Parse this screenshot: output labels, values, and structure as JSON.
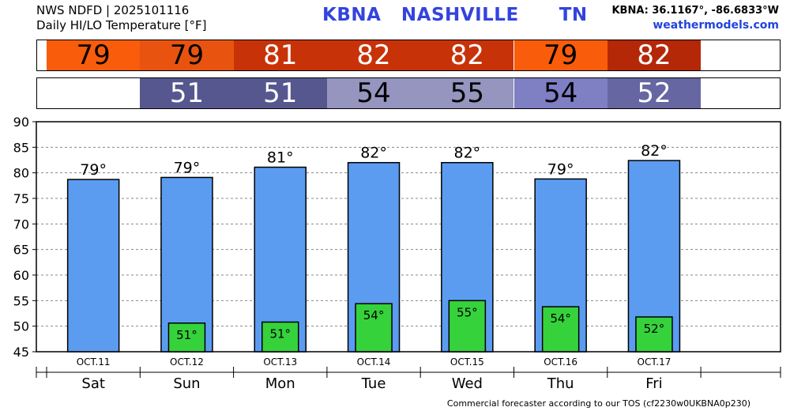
{
  "header": {
    "line1": "NWS NDFD | 2025101116",
    "line2": "Daily HI/LO Temperature [°F]",
    "station": "KBNA   NASHVILLE      TN",
    "coords": "KBNA: 36.1167°, -86.6833°W",
    "site": "weathermodels.com"
  },
  "hi_strip": [
    {
      "value": "79",
      "color": "#f95c0b",
      "text_color": "#000000"
    },
    {
      "value": "79",
      "color": "#e8540f",
      "text_color": "#000000"
    },
    {
      "value": "81",
      "color": "#c83208",
      "text_color": "#ffffff"
    },
    {
      "value": "82",
      "color": "#c83208",
      "text_color": "#ffffff"
    },
    {
      "value": "82",
      "color": "#c83208",
      "text_color": "#ffffff"
    },
    {
      "value": "79",
      "color": "#f95c0b",
      "text_color": "#000000"
    },
    {
      "value": "82",
      "color": "#b42808",
      "text_color": "#ffffff"
    }
  ],
  "lo_strip": [
    {
      "value": "",
      "color": "#ffffff",
      "text_color": "#000000"
    },
    {
      "value": "51",
      "color": "#57578f",
      "text_color": "#ffffff"
    },
    {
      "value": "51",
      "color": "#57578f",
      "text_color": "#ffffff"
    },
    {
      "value": "54",
      "color": "#9595bf",
      "text_color": "#000000"
    },
    {
      "value": "55",
      "color": "#9595bf",
      "text_color": "#000000"
    },
    {
      "value": "54",
      "color": "#7f7fc4",
      "text_color": "#000000"
    },
    {
      "value": "52",
      "color": "#6666a3",
      "text_color": "#ffffff"
    }
  ],
  "chart_data": {
    "type": "bar",
    "categories": [
      "Sat",
      "Sun",
      "Mon",
      "Tue",
      "Wed",
      "Thu",
      "Fri"
    ],
    "dates": [
      "OCT.11",
      "OCT.12",
      "OCT.13",
      "OCT.14",
      "OCT.15",
      "OCT.16",
      "OCT.17"
    ],
    "hi_values": [
      78.7,
      79.1,
      81.1,
      82.0,
      82.0,
      78.8,
      82.4
    ],
    "hi_labels": [
      "79°",
      "79°",
      "81°",
      "82°",
      "82°",
      "79°",
      "82°"
    ],
    "lo_values": [
      null,
      50.6,
      50.8,
      54.4,
      55.0,
      53.8,
      51.8
    ],
    "lo_labels": [
      "",
      "51°",
      "51°",
      "54°",
      "55°",
      "54°",
      "52°"
    ],
    "ylim": [
      45,
      90
    ],
    "yticks": [
      45,
      50,
      55,
      60,
      65,
      70,
      75,
      80,
      85,
      90
    ],
    "grid": true,
    "colors": {
      "hi_bar": "#5b9cf1",
      "lo_bar": "#36d23c"
    }
  },
  "footer": "Commercial forecaster according to our TOS (cf2230w0UKBNA0p230)"
}
